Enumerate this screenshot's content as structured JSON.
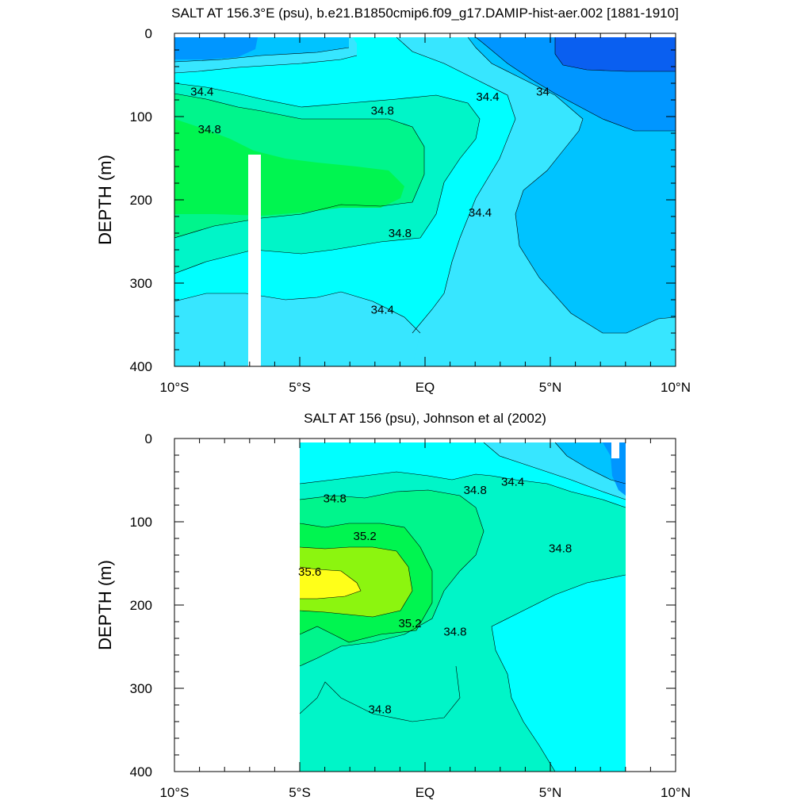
{
  "chart_data": [
    {
      "type": "contour",
      "title": "SALT AT 156.3°E (psu), b.e21.B1850cmip6.f09_g17.DAMIP-hist-aer.002 [1881-1910]",
      "xlabel": "",
      "ylabel": "DEPTH (m)",
      "xlim": [
        -10,
        10
      ],
      "ylim": [
        400,
        0
      ],
      "x_ticks": [
        {
          "value": -10,
          "label": "10°S"
        },
        {
          "value": -5,
          "label": "5°S"
        },
        {
          "value": 0,
          "label": "EQ"
        },
        {
          "value": 5,
          "label": "5°N"
        },
        {
          "value": 10,
          "label": "10°N"
        }
      ],
      "y_ticks": [
        {
          "value": 0,
          "label": "0"
        },
        {
          "value": 100,
          "label": "100"
        },
        {
          "value": 200,
          "label": "200"
        },
        {
          "value": 300,
          "label": "300"
        },
        {
          "value": 400,
          "label": "400"
        }
      ],
      "contour_interval": 0.2,
      "data_extent": {
        "lon": [
          -10,
          10
        ],
        "depth": [
          5,
          400
        ]
      },
      "missing_data_column": {
        "lon": [
          -7.3,
          -6.8
        ],
        "depth": [
          145,
          400
        ]
      },
      "contour_labels": [
        {
          "text": "34.4",
          "lon": -8.9,
          "depth": 70
        },
        {
          "text": "34.8",
          "lon": -8.6,
          "depth": 115
        },
        {
          "text": "34.8",
          "lon": -1.7,
          "depth": 93
        },
        {
          "text": "34.4",
          "lon": 2.5,
          "depth": 76
        },
        {
          "text": "34",
          "lon": 4.7,
          "depth": 70
        },
        {
          "text": "34.4",
          "lon": 2.2,
          "depth": 215
        },
        {
          "text": "34.8",
          "lon": -1.0,
          "depth": 240
        },
        {
          "text": "34.4",
          "lon": -1.7,
          "depth": 332
        }
      ]
    },
    {
      "type": "contour",
      "title": "SALT AT 156 (psu), Johnson et al (2002)",
      "xlabel": "",
      "ylabel": "DEPTH (m)",
      "xlim": [
        -10,
        10
      ],
      "ylim": [
        400,
        0
      ],
      "x_ticks": [
        {
          "value": -10,
          "label": "10°S"
        },
        {
          "value": -5,
          "label": "5°S"
        },
        {
          "value": 0,
          "label": "EQ"
        },
        {
          "value": 5,
          "label": "5°N"
        },
        {
          "value": 10,
          "label": "10°N"
        }
      ],
      "y_ticks": [
        {
          "value": 0,
          "label": "0"
        },
        {
          "value": 100,
          "label": "100"
        },
        {
          "value": 200,
          "label": "200"
        },
        {
          "value": 300,
          "label": "300"
        },
        {
          "value": 400,
          "label": "400"
        }
      ],
      "contour_interval": 0.2,
      "data_extent": {
        "lon": [
          -5,
          8
        ],
        "depth": [
          5,
          400
        ]
      },
      "contour_labels": [
        {
          "text": "34.8",
          "lon": -3.6,
          "depth": 72
        },
        {
          "text": "34.8",
          "lon": 2.0,
          "depth": 62
        },
        {
          "text": "34.4",
          "lon": 3.5,
          "depth": 52
        },
        {
          "text": "34.8",
          "lon": 5.4,
          "depth": 132
        },
        {
          "text": "35.2",
          "lon": -2.4,
          "depth": 117
        },
        {
          "text": "35.6",
          "lon": -4.6,
          "depth": 160
        },
        {
          "text": "35.2",
          "lon": -0.6,
          "depth": 222
        },
        {
          "text": "34.8",
          "lon": 1.2,
          "depth": 232
        },
        {
          "text": "34.8",
          "lon": -1.8,
          "depth": 325
        }
      ]
    }
  ],
  "colors": {
    "c33_8": "#0a5ff0",
    "c34_0": "#0096ff",
    "c34_2": "#00c3ff",
    "c34_4": "#37e6ff",
    "c34_6": "#00ffff",
    "c34_8": "#00f5c8",
    "c35_0": "#00f58c",
    "c35_2": "#00f550",
    "c35_4": "#8cf50f",
    "c35_6": "#ffff19"
  }
}
